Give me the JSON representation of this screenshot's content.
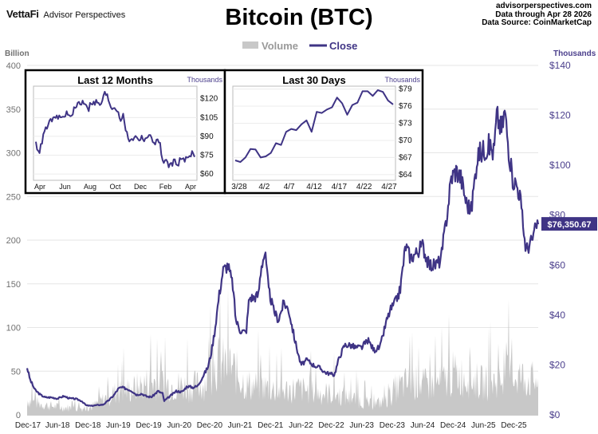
{
  "header": {
    "brand": "VettaFi",
    "brand_sub": "Advisor Perspectives",
    "title": "Bitcoin (BTC)",
    "site": "advisorperspectives.com",
    "data_through": "Data through  Apr 28 2026",
    "data_source": "Data Source:  CoinMarketCap"
  },
  "colors": {
    "close": "#3f3485",
    "volume": "#c8c8c8",
    "axis_right": "#4b3f8c",
    "axis_left": "#707070"
  },
  "chart_data": [
    {
      "type": "line",
      "title": "Bitcoin (BTC)",
      "legend": {
        "position": "top-center",
        "entries": [
          "Volume",
          "Close"
        ]
      },
      "y_left_label": "Billion",
      "y_right_label": "Thousands",
      "ylim_left": [
        0,
        400
      ],
      "ylim_right": [
        0,
        140
      ],
      "y_left_ticks": [
        "0",
        "50",
        "100",
        "150",
        "200",
        "250",
        "300",
        "350",
        "400"
      ],
      "y_right_ticks": [
        "$0",
        "$20",
        "$40",
        "$60",
        "$80",
        "$100",
        "$120",
        "$140"
      ],
      "x_ticks": [
        "Dec-17",
        "Jun-18",
        "Dec-18",
        "Jun-19",
        "Dec-19",
        "Jun-20",
        "Dec-20",
        "Jun-21",
        "Dec-21",
        "Jun-22",
        "Dec-22",
        "Jun-23",
        "Dec-23",
        "Jun-24",
        "Dec-24",
        "Jun-25",
        "Dec-25"
      ],
      "grid": true,
      "last_value_label": "$76,350.67",
      "last_value": 76.35,
      "close_series": {
        "name": "Close",
        "x": [
          2017.95,
          2018.0,
          2018.08,
          2018.17,
          2018.25,
          2018.35,
          2018.45,
          2018.55,
          2018.65,
          2018.75,
          2018.85,
          2018.92,
          2019.0,
          2019.1,
          2019.2,
          2019.3,
          2019.38,
          2019.45,
          2019.5,
          2019.58,
          2019.67,
          2019.75,
          2019.83,
          2019.92,
          2020.0,
          2020.1,
          2020.18,
          2020.2,
          2020.3,
          2020.4,
          2020.5,
          2020.58,
          2020.67,
          2020.75,
          2020.83,
          2020.92,
          2020.97,
          2021.03,
          2021.1,
          2021.17,
          2021.25,
          2021.33,
          2021.38,
          2021.45,
          2021.55,
          2021.6,
          2021.67,
          2021.75,
          2021.8,
          2021.86,
          2021.92,
          2022.0,
          2022.08,
          2022.17,
          2022.25,
          2022.35,
          2022.45,
          2022.55,
          2022.65,
          2022.75,
          2022.85,
          2022.92,
          2023.0,
          2023.08,
          2023.17,
          2023.25,
          2023.35,
          2023.45,
          2023.55,
          2023.65,
          2023.75,
          2023.85,
          2023.92,
          2024.0,
          2024.08,
          2024.17,
          2024.25,
          2024.35,
          2024.45,
          2024.55,
          2024.65,
          2024.75,
          2024.85,
          2024.92,
          2025.0,
          2025.08,
          2025.17,
          2025.25,
          2025.35,
          2025.45,
          2025.55,
          2025.62,
          2025.67,
          2025.75,
          2025.8,
          2025.85,
          2025.92,
          2026.0,
          2026.05,
          2026.1,
          2026.15,
          2026.25,
          2026.33
        ],
        "values": [
          19,
          14,
          10,
          8,
          7,
          7,
          6.5,
          7.5,
          6.6,
          6.4,
          5.5,
          3.8,
          3.6,
          3.9,
          4.1,
          6,
          8,
          10.5,
          11,
          10.5,
          9.6,
          8,
          8.5,
          7.3,
          7.2,
          9.5,
          8.5,
          5.5,
          7.5,
          9.5,
          9.2,
          11.5,
          11,
          11.5,
          15,
          19,
          24,
          33,
          47,
          58,
          60,
          52,
          38,
          34,
          33,
          47,
          47,
          48,
          60,
          65,
          50,
          42,
          38,
          45,
          42,
          30,
          20,
          22,
          20,
          19,
          17,
          16.5,
          16,
          23,
          28,
          28,
          27,
          27,
          30,
          26,
          27,
          37,
          42,
          45,
          50,
          68,
          63,
          65,
          68,
          60,
          60,
          62,
          80,
          95,
          98,
          95,
          85,
          82,
          104,
          106,
          108,
          105,
          120,
          114,
          122,
          110,
          95,
          92,
          88,
          76,
          66,
          70,
          76.35
        ]
      },
      "volume_series": {
        "name": "Volume",
        "x": [
          2017.95,
          2018.2,
          2018.5,
          2018.8,
          2019.0,
          2019.4,
          2019.7,
          2020.0,
          2020.3,
          2020.6,
          2020.85,
          2021.05,
          2021.3,
          2021.55,
          2021.85,
          2022.1,
          2022.4,
          2022.7,
          2023.0,
          2023.3,
          2023.6,
          2023.85,
          2024.0,
          2024.25,
          2024.5,
          2024.75,
          2024.95,
          2025.2,
          2025.45,
          2025.7,
          2025.9,
          2026.1,
          2026.33
        ],
        "values": [
          20,
          14,
          10,
          9,
          10,
          30,
          35,
          45,
          40,
          38,
          40,
          70,
          65,
          40,
          38,
          32,
          35,
          30,
          28,
          22,
          14,
          18,
          35,
          45,
          40,
          42,
          55,
          50,
          42,
          45,
          55,
          50,
          45
        ]
      }
    },
    {
      "type": "line",
      "title": "Last 12 Months",
      "y_label": "Thousands",
      "y_ticks": [
        "$60",
        "$75",
        "$90",
        "$105",
        "$120"
      ],
      "x_ticks": [
        "Apr",
        "Jun",
        "Aug",
        "Oct",
        "Dec",
        "Feb",
        "Apr"
      ],
      "ylim": [
        55,
        130
      ],
      "x": [
        0,
        0.15,
        0.3,
        0.5,
        0.7,
        1,
        1.2,
        1.4,
        1.7,
        2,
        2.2,
        2.4,
        2.6,
        2.8,
        3,
        3.2,
        3.4,
        3.6,
        3.8,
        4,
        4.2,
        4.4,
        4.6,
        4.8,
        5,
        5.2,
        5.4,
        5.6,
        5.8,
        6,
        6.2,
        6.4,
        6.6,
        6.8,
        7,
        7.2,
        7.4,
        7.6,
        7.8,
        8,
        8.2,
        8.5,
        8.8,
        9,
        9.2,
        9.4,
        9.6,
        9.8,
        10,
        10.2,
        10.5,
        10.8,
        11,
        11.2,
        11.5,
        11.8,
        12
      ],
      "values": [
        84,
        80,
        78,
        88,
        95,
        100,
        104,
        103,
        106,
        104,
        108,
        108,
        104,
        110,
        112,
        117,
        116,
        118,
        116,
        112,
        118,
        116,
        118,
        114,
        118,
        124,
        122,
        116,
        112,
        114,
        110,
        104,
        106,
        96,
        86,
        89,
        88,
        90,
        88,
        89,
        88,
        90,
        88,
        85,
        86,
        85,
        68,
        72,
        66,
        68,
        70,
        69,
        73,
        70,
        74,
        77,
        76
      ]
    },
    {
      "type": "line",
      "title": "Last 30 Days",
      "y_label": "Thousands",
      "y_ticks": [
        "$64",
        "$67",
        "$70",
        "$73",
        "$76",
        "$79"
      ],
      "x_ticks": [
        "3/28",
        "4/2",
        "4/7",
        "4/12",
        "4/17",
        "4/22",
        "4/27"
      ],
      "ylim": [
        63,
        79.5
      ],
      "x": [
        0,
        1,
        2,
        3,
        4,
        5,
        6,
        7,
        8,
        9,
        10,
        11,
        12,
        13,
        14,
        15,
        16,
        17,
        18,
        19,
        20,
        21,
        22,
        23,
        24,
        25,
        26,
        27,
        28,
        29,
        30,
        31
      ],
      "values": [
        66.5,
        66.2,
        67,
        68.5,
        68.4,
        67,
        67.2,
        67.8,
        69.5,
        69.2,
        71.5,
        72,
        71.8,
        72.8,
        73.5,
        71.5,
        75,
        74.8,
        75.4,
        75.8,
        77.5,
        76.5,
        74.5,
        76.2,
        76.6,
        78.6,
        78.6,
        77.8,
        78.8,
        78.5,
        77,
        76.3
      ]
    }
  ]
}
